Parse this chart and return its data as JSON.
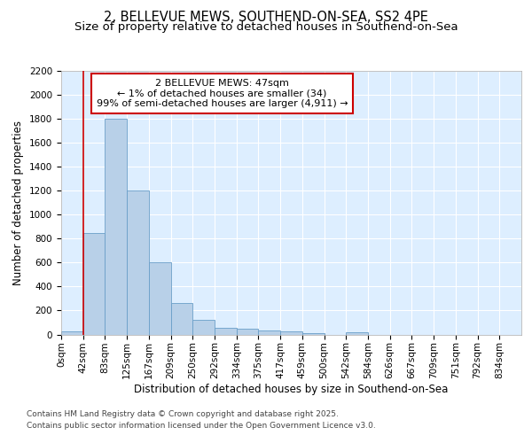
{
  "title_line1": "2, BELLEVUE MEWS, SOUTHEND-ON-SEA, SS2 4PE",
  "title_line2": "Size of property relative to detached houses in Southend-on-Sea",
  "xlabel": "Distribution of detached houses by size in Southend-on-Sea",
  "ylabel": "Number of detached properties",
  "bin_labels": [
    "0sqm",
    "42sqm",
    "83sqm",
    "125sqm",
    "167sqm",
    "209sqm",
    "250sqm",
    "292sqm",
    "334sqm",
    "375sqm",
    "417sqm",
    "459sqm",
    "500sqm",
    "542sqm",
    "584sqm",
    "626sqm",
    "667sqm",
    "709sqm",
    "751sqm",
    "792sqm",
    "834sqm"
  ],
  "bar_heights": [
    25,
    850,
    1800,
    1200,
    600,
    260,
    125,
    55,
    50,
    35,
    25,
    10,
    0,
    15,
    0,
    0,
    0,
    0,
    0,
    0,
    0
  ],
  "bar_color": "#b8d0e8",
  "bar_edge_color": "#6a9fc8",
  "ylim": [
    0,
    2200
  ],
  "yticks": [
    0,
    200,
    400,
    600,
    800,
    1000,
    1200,
    1400,
    1600,
    1800,
    2000,
    2200
  ],
  "red_line_color": "#cc0000",
  "red_line_x": 1.0,
  "annotation_text": "2 BELLEVUE MEWS: 47sqm\n← 1% of detached houses are smaller (34)\n99% of semi-detached houses are larger (4,911) →",
  "annotation_box_color": "#ffffff",
  "annotation_border_color": "#cc0000",
  "footnote_line1": "Contains HM Land Registry data © Crown copyright and database right 2025.",
  "footnote_line2": "Contains public sector information licensed under the Open Government Licence v3.0.",
  "background_color": "#ffffff",
  "plot_bg_color": "#ddeeff",
  "grid_color": "#ffffff",
  "title_fontsize": 10.5,
  "subtitle_fontsize": 9.5,
  "axis_label_fontsize": 8.5,
  "tick_fontsize": 7.5,
  "annotation_fontsize": 8,
  "footnote_fontsize": 6.5
}
